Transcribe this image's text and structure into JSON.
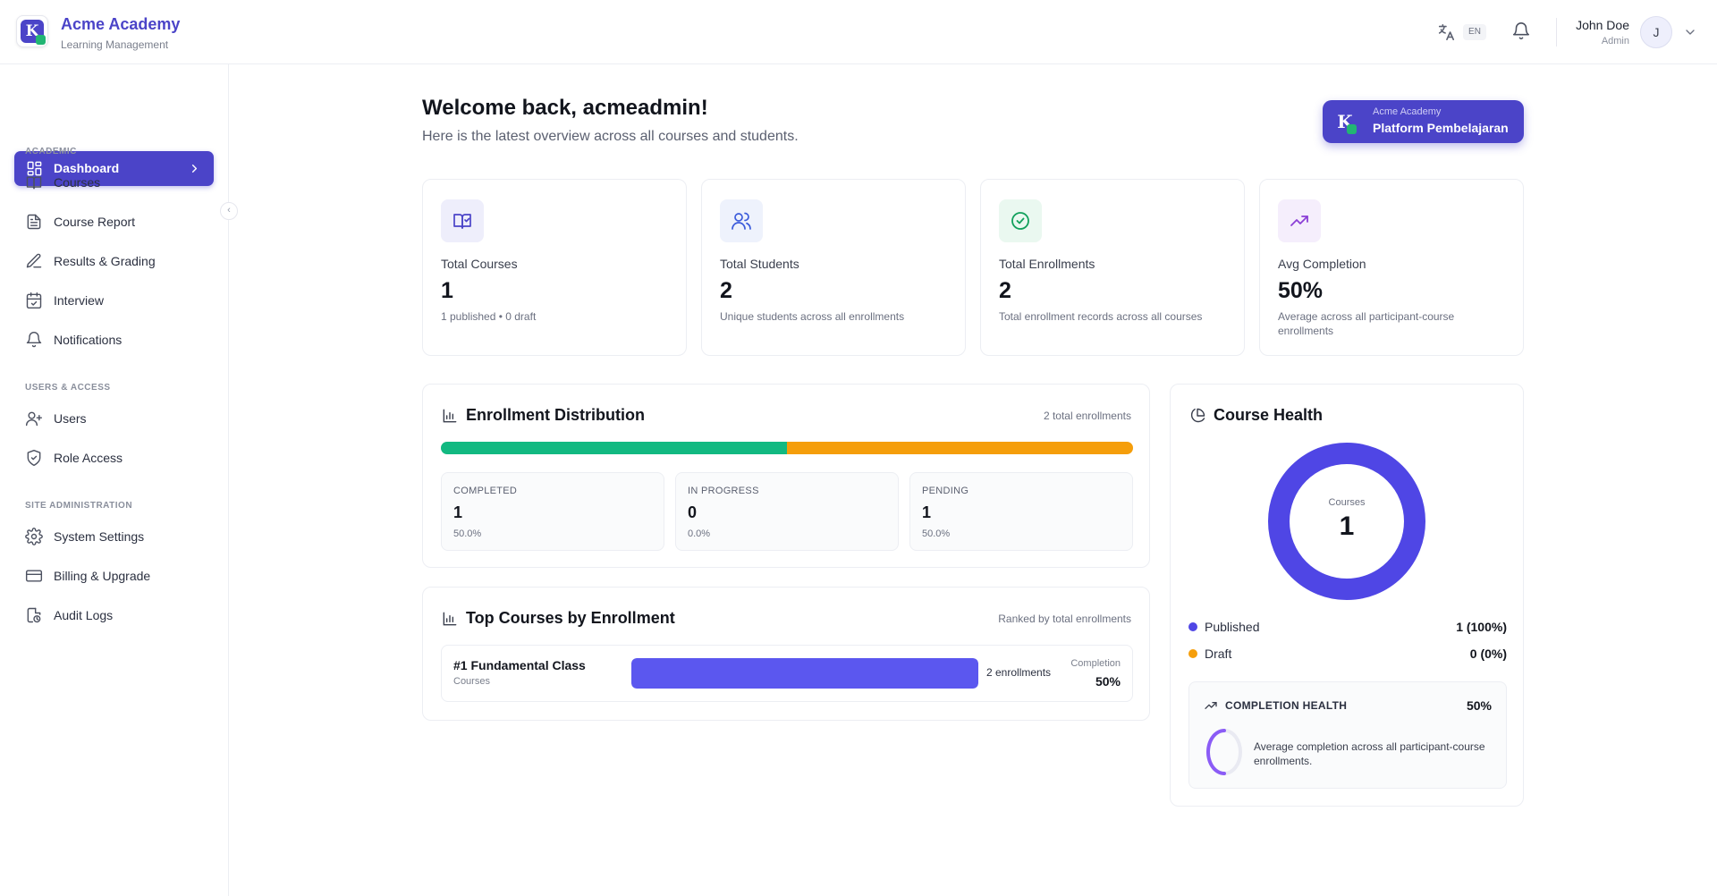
{
  "brand": {
    "name": "Acme Academy",
    "subtitle": "Learning Management",
    "logo_letter": "K"
  },
  "header": {
    "language_code": "EN",
    "user_name": "John Doe",
    "user_role": "Admin",
    "avatar_letter": "J"
  },
  "sidebar": {
    "active": {
      "label": "Dashboard",
      "icon": "dashboard-icon"
    },
    "sections": [
      {
        "title": "ACADEMIC",
        "items": [
          {
            "label": "Courses",
            "icon": "book-icon"
          },
          {
            "label": "Course Report",
            "icon": "document-icon"
          },
          {
            "label": "Results & Grading",
            "icon": "pencil-icon"
          },
          {
            "label": "Interview",
            "icon": "calendar-check-icon"
          },
          {
            "label": "Notifications",
            "icon": "bell-icon"
          }
        ]
      },
      {
        "title": "USERS & ACCESS",
        "items": [
          {
            "label": "Users",
            "icon": "user-plus-icon"
          },
          {
            "label": "Role Access",
            "icon": "shield-check-icon"
          }
        ]
      },
      {
        "title": "SITE ADMINISTRATION",
        "items": [
          {
            "label": "System Settings",
            "icon": "gear-icon"
          },
          {
            "label": "Billing & Upgrade",
            "icon": "credit-card-icon"
          },
          {
            "label": "Audit Logs",
            "icon": "audit-log-icon"
          }
        ]
      }
    ]
  },
  "welcome": {
    "title": "Welcome back, acmeadmin!",
    "subtitle": "Here is the latest overview across all courses and students."
  },
  "platform_badge": {
    "small": "Acme Academy",
    "big": "Platform Pembelajaran"
  },
  "stats": [
    {
      "label": "Total Courses",
      "value": "1",
      "desc": "1 published • 0 draft",
      "icon": "book-check-icon",
      "color": "#4b44c8",
      "bg": "#eeeefb"
    },
    {
      "label": "Total Students",
      "value": "2",
      "desc": "Unique students across all enrollments",
      "icon": "users-icon",
      "color": "#3b5bdb",
      "bg": "#eef2fc"
    },
    {
      "label": "Total Enrollments",
      "value": "2",
      "desc": "Total enrollment records across all courses",
      "icon": "check-circle-icon",
      "color": "#12a05c",
      "bg": "#eaf8f0"
    },
    {
      "label": "Avg Completion",
      "value": "50%",
      "desc": "Average across all participant-course enrollments",
      "icon": "trending-up-icon",
      "color": "#8b3fd6",
      "bg": "#f5eefc"
    }
  ],
  "enrollment_distribution": {
    "title": "Enrollment Distribution",
    "meta": "2 total enrollments",
    "segments": [
      {
        "label": "COMPLETED",
        "value": "1",
        "pct": "50.0%",
        "fraction": 0.5,
        "color": "#12b981"
      },
      {
        "label": "IN PROGRESS",
        "value": "0",
        "pct": "0.0%",
        "fraction": 0.0,
        "color": "#3b82f6"
      },
      {
        "label": "PENDING",
        "value": "1",
        "pct": "50.0%",
        "fraction": 0.5,
        "color": "#f59e0b"
      }
    ]
  },
  "top_courses": {
    "title": "Top Courses by Enrollment",
    "meta": "Ranked by total enrollments",
    "rows": [
      {
        "name": "#1 Fundamental Class",
        "category": "Courses",
        "enrollments": "2 enrollments",
        "bar_fraction": 1.0,
        "completion_label": "Completion",
        "completion": "50%"
      }
    ]
  },
  "course_health": {
    "title": "Course Health",
    "donut_label": "Courses",
    "donut_value": "1",
    "published_fraction": 1.0,
    "legend": [
      {
        "name": "Published",
        "value": "1 (100%)",
        "color": "#4f46e5"
      },
      {
        "name": "Draft",
        "value": "0 (0%)",
        "color": "#f59e0b"
      }
    ],
    "completion_health": {
      "title": "COMPLETION HEALTH",
      "pct": "50%",
      "fraction": 0.5,
      "text": "Average completion across all participant-course enrollments."
    }
  }
}
